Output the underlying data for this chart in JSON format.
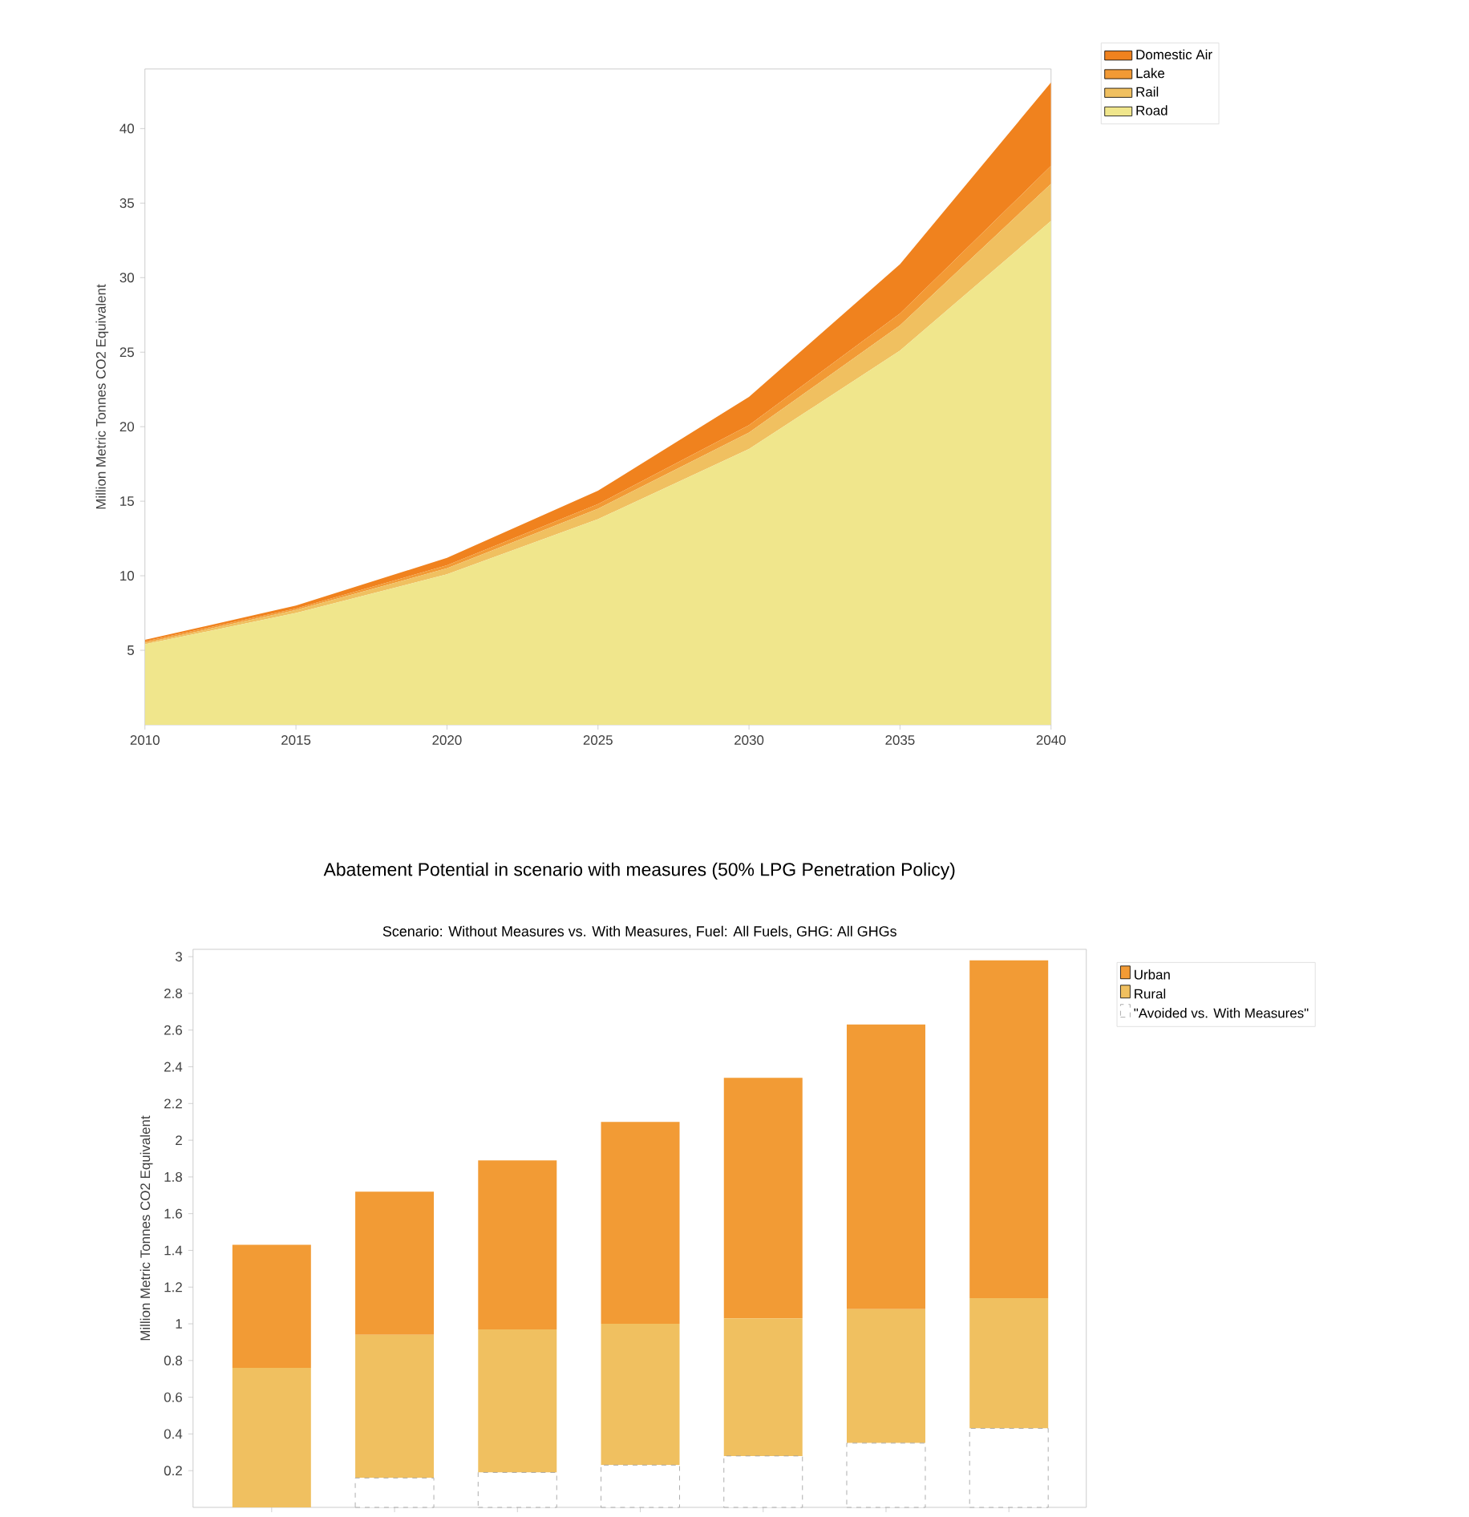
{
  "chart_data": [
    {
      "type": "area",
      "stacked": true,
      "ylabel": "Million Metric Tonnes CO2 Equivalent",
      "x": [
        2010,
        2015,
        2020,
        2025,
        2030,
        2035,
        2040
      ],
      "series": [
        {
          "name": "Road",
          "color": "#f0e68c",
          "values": [
            5.4,
            7.5,
            10.1,
            13.8,
            18.5,
            25.1,
            33.8
          ]
        },
        {
          "name": "Rail",
          "color": "#f0c060",
          "values": [
            0.1,
            0.2,
            0.4,
            0.7,
            1.1,
            1.7,
            2.5
          ]
        },
        {
          "name": "Lake",
          "color": "#f29a35",
          "values": [
            0.1,
            0.1,
            0.2,
            0.3,
            0.5,
            0.8,
            1.2
          ]
        },
        {
          "name": "Domestic Air",
          "color": "#f0821e",
          "values": [
            0.1,
            0.2,
            0.5,
            0.9,
            1.9,
            3.3,
            5.6
          ]
        }
      ],
      "xlim": [
        2010,
        2040
      ],
      "xticks": [
        2010,
        2015,
        2020,
        2025,
        2030,
        2035,
        2040
      ],
      "ylim": [
        0,
        44
      ],
      "yticks": [
        5,
        10,
        15,
        20,
        25,
        30,
        35,
        40
      ],
      "legend": "top right",
      "marker": "none"
    },
    {
      "type": "bar",
      "stacked": true,
      "title": "Abatement Potential in scenario with measures (50% LPG Penetration Policy)",
      "subtitle": "Scenario: Without Measures vs. With Measures, Fuel: All Fuels, GHG: All GHGs",
      "ylabel": "Million Metric Tonnes CO2 Equivalent",
      "categories": [
        null,
        null,
        null,
        null,
        null,
        null,
        null
      ],
      "series": [
        {
          "name": "\"Avoided vs. With Measures\"",
          "color": "#ffffff",
          "line_style": "dashed",
          "values": [
            0,
            0.16,
            0.19,
            0.23,
            0.28,
            0.35,
            0.43
          ]
        },
        {
          "name": "Rural",
          "color": "#f0c060",
          "values": [
            0.76,
            0.78,
            0.78,
            0.77,
            0.75,
            0.73,
            0.71
          ]
        },
        {
          "name": "Urban",
          "color": "#f29b35",
          "values": [
            0.67,
            0.78,
            0.92,
            1.1,
            1.31,
            1.55,
            1.84
          ]
        }
      ],
      "ylim": [
        0,
        3.04
      ],
      "yticks": [
        0.2,
        0.4,
        0.6,
        0.8,
        1,
        1.2,
        1.4,
        1.6,
        1.8,
        2,
        2.2,
        2.4,
        2.6,
        2.8,
        3
      ],
      "legend": "top right"
    }
  ]
}
